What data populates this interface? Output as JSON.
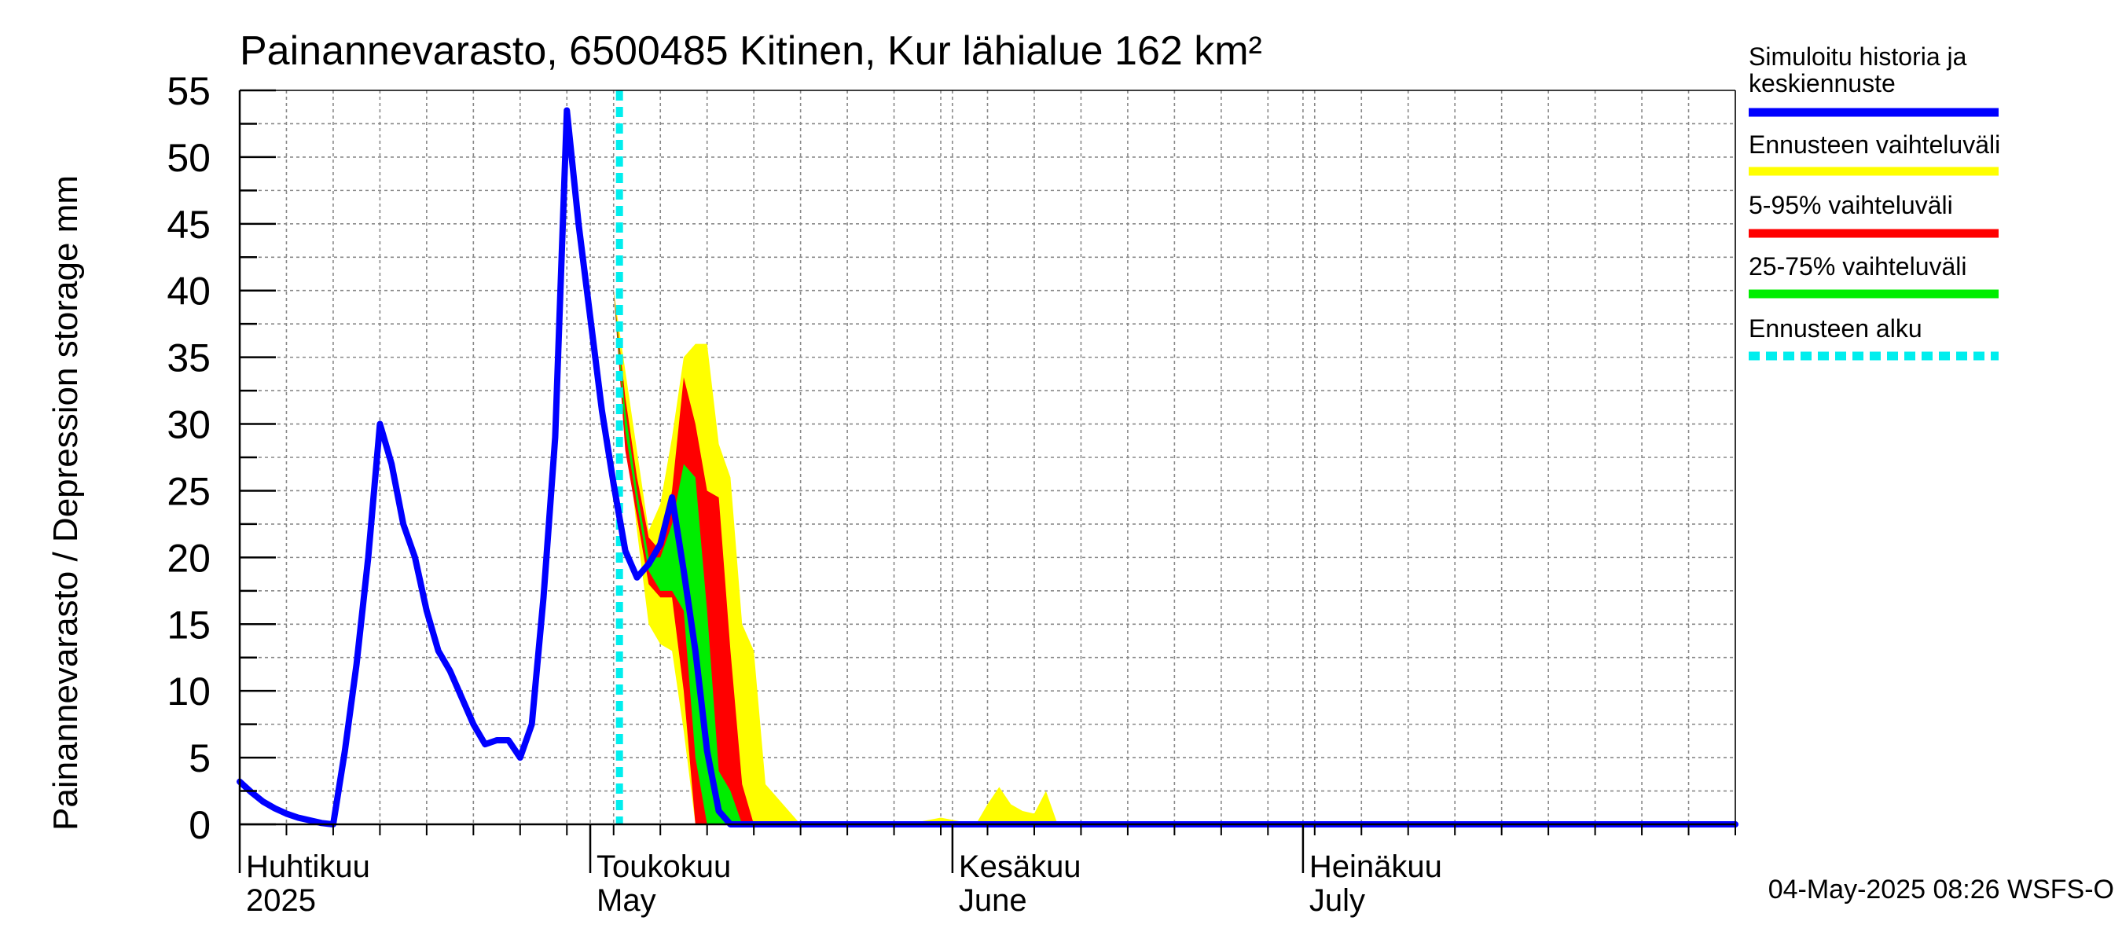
{
  "chart_data": {
    "type": "area",
    "title": "Painannevarasto, 6500485 Kitinen, Kur lähialue 162 km²",
    "ylabel": "Painannevarasto / Depression storage    mm",
    "ylim": [
      0,
      55
    ],
    "yticks": [
      0,
      5,
      10,
      15,
      20,
      25,
      30,
      35,
      40,
      45,
      50,
      55
    ],
    "xlim_day": [
      0,
      128
    ],
    "months": [
      {
        "day": 0,
        "fi": "Huhtikuu",
        "en": "2025"
      },
      {
        "day": 30,
        "fi": "Toukokuu",
        "en": "May"
      },
      {
        "day": 61,
        "fi": "Kesäkuu",
        "en": "June"
      },
      {
        "day": 91,
        "fi": "Heinäkuu",
        "en": "July"
      }
    ],
    "forecast_start_day": 32.5,
    "x_day": [
      0,
      1,
      2,
      3,
      4,
      5,
      6,
      7,
      8,
      9,
      10,
      11,
      12,
      13,
      14,
      15,
      16,
      17,
      18,
      19,
      20,
      21,
      22,
      23,
      24,
      25,
      26,
      27,
      28,
      29,
      30,
      31,
      32,
      33,
      34,
      35,
      36,
      37,
      38,
      39,
      40,
      41,
      42,
      43,
      44,
      45,
      46,
      47,
      48,
      49,
      50,
      51,
      52,
      53,
      54,
      55,
      56,
      57,
      58,
      59,
      60,
      61,
      62,
      63,
      64,
      65,
      66,
      67,
      68,
      69,
      70,
      71,
      72,
      73,
      74,
      75,
      76,
      77,
      78,
      79,
      80,
      81,
      82,
      83,
      84,
      85,
      86,
      87,
      88,
      89,
      90,
      91,
      92,
      93,
      94,
      95,
      96,
      97,
      98,
      99,
      100,
      101,
      102,
      103,
      104,
      105,
      106,
      107,
      108,
      109,
      110,
      111,
      112,
      113,
      114,
      115,
      116,
      117,
      118,
      119,
      120,
      121,
      122,
      123,
      124,
      125,
      126,
      127,
      128
    ],
    "series": [
      {
        "name": "Simuloitu historia ja keskiennuste",
        "values": [
          3.2,
          2.4,
          1.7,
          1.2,
          0.8,
          0.5,
          0.3,
          0.1,
          0.0,
          5.5,
          12.0,
          20.0,
          30.0,
          27.0,
          22.5,
          20.0,
          16.0,
          13.0,
          11.5,
          9.5,
          7.5,
          6.0,
          6.3,
          6.3,
          5.0,
          7.5,
          17.0,
          29.0,
          53.5,
          45.0,
          38.0,
          31.0,
          25.5,
          20.5,
          18.5,
          19.5,
          21.0,
          24.5,
          19.0,
          13.0,
          5.5,
          1.0,
          0.0,
          0.0,
          0.0,
          0.0,
          0.0,
          0.0,
          0.0,
          0.0,
          0.0,
          0.0,
          0.0,
          0.0,
          0.0,
          0.0,
          0.0,
          0.0,
          0.0,
          0.0,
          0.0,
          0.0,
          0.0,
          0.0,
          0.0,
          0.0,
          0.0,
          0.0,
          0.0,
          0.0,
          0.0,
          0.0,
          0.0,
          0.0,
          0.0,
          0.0,
          0.0,
          0.0,
          0.0,
          0.0,
          0.0,
          0.0,
          0.0,
          0.0,
          0.0,
          0.0,
          0.0,
          0.0,
          0.0,
          0.0,
          0.0,
          0.0,
          0.0,
          0.0,
          0.0,
          0.0,
          0.0,
          0.0,
          0.0,
          0.0,
          0.0,
          0.0,
          0.0,
          0.0,
          0.0,
          0.0,
          0.0,
          0.0,
          0.0,
          0.0,
          0.0,
          0.0,
          0.0,
          0.0,
          0.0,
          0.0,
          0.0,
          0.0,
          0.0,
          0.0,
          0.0,
          0.0,
          0.0,
          0.0,
          0.0,
          0.0,
          0.0,
          0.0,
          0.0
        ],
        "color": "#0000ff"
      },
      {
        "name": "Ennusteen vaihteluväli",
        "x": [
          32,
          33,
          34,
          35,
          36,
          37,
          38,
          39,
          40,
          41,
          42,
          43,
          44,
          45,
          48,
          54,
          57,
          60,
          63,
          64,
          65,
          66,
          67,
          68,
          69,
          70,
          71,
          72,
          75
        ],
        "upper": [
          40,
          34,
          28,
          22,
          24,
          29,
          35,
          36,
          36,
          28.5,
          26,
          15,
          13,
          3,
          0,
          0,
          0,
          0.5,
          0,
          1.5,
          2.8,
          1.5,
          1,
          0.8,
          2.5,
          0,
          0,
          0,
          0
        ],
        "lower": [
          40,
          30,
          22,
          15,
          13.5,
          13,
          7,
          0,
          0,
          0,
          0,
          0,
          0,
          0,
          0,
          0,
          0,
          0,
          0,
          0,
          0,
          0,
          0,
          0,
          0,
          0,
          0,
          0,
          0
        ],
        "color": "#ffff00"
      },
      {
        "name": "5-95% vaihteluväli",
        "x": [
          32,
          33,
          34,
          35,
          36,
          37,
          38,
          39,
          40,
          41,
          42,
          43,
          44,
          45
        ],
        "upper": [
          40,
          32,
          26,
          21.5,
          20.5,
          25,
          33.5,
          30,
          25,
          24.5,
          13,
          3,
          0,
          0
        ],
        "lower": [
          40,
          28,
          23,
          18,
          17,
          17,
          10,
          0,
          0,
          0,
          0,
          0,
          0,
          0
        ],
        "color": "#ff0000"
      },
      {
        "name": "25-75% vaihteluväli",
        "x": [
          32,
          33,
          34,
          35,
          36,
          37,
          38,
          39,
          40,
          41,
          42,
          43
        ],
        "upper": [
          40,
          31,
          25,
          20,
          20,
          22.5,
          27,
          26,
          16,
          4,
          2.5,
          0
        ],
        "lower": [
          40,
          29.5,
          24,
          19,
          17.5,
          17.5,
          16,
          5,
          0,
          0,
          0,
          0
        ],
        "color": "#00ee00"
      },
      {
        "name": "Ennusteen alku",
        "color": "#00eeee"
      }
    ],
    "footer": "04-May-2025 08:26 WSFS-O"
  }
}
